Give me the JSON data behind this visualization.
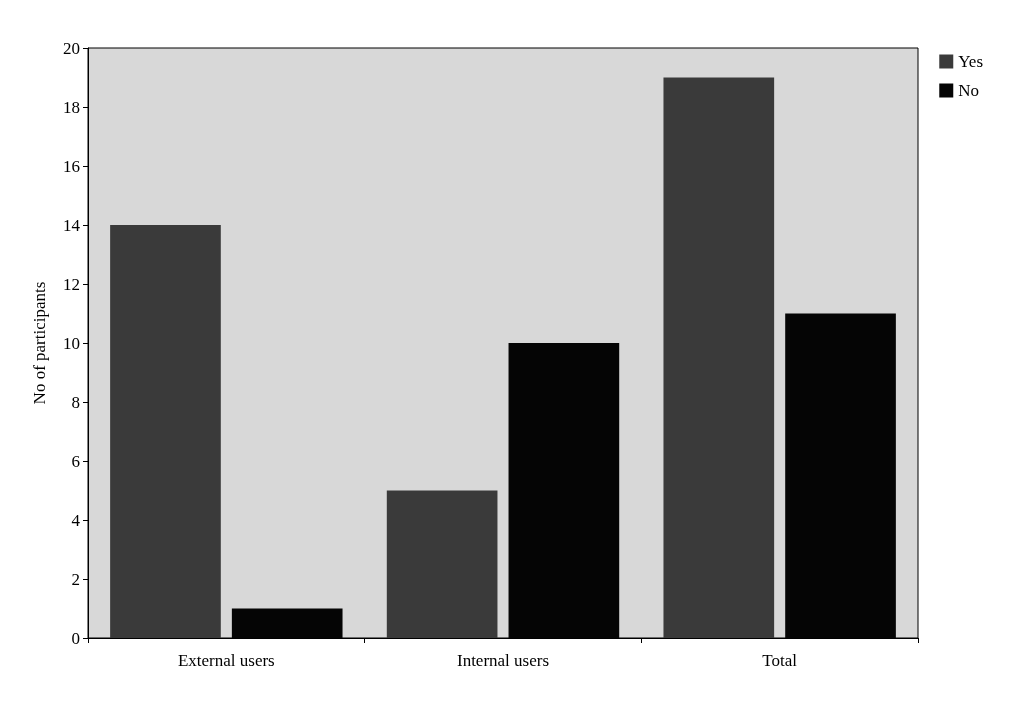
{
  "chart_data": {
    "type": "bar",
    "ylabel": "No of participants",
    "categories": [
      "External users",
      "Internal users",
      "Total"
    ],
    "series": [
      {
        "name": "Yes",
        "color": "#3a3a3a",
        "values": [
          14,
          5,
          19
        ]
      },
      {
        "name": "No",
        "color": "#050505",
        "values": [
          1,
          10,
          11
        ]
      }
    ],
    "ylim": [
      0,
      20
    ],
    "yticks": [
      0,
      2,
      4,
      6,
      8,
      10,
      12,
      14,
      16,
      18,
      20
    ],
    "grid": false,
    "legend": "top right"
  }
}
